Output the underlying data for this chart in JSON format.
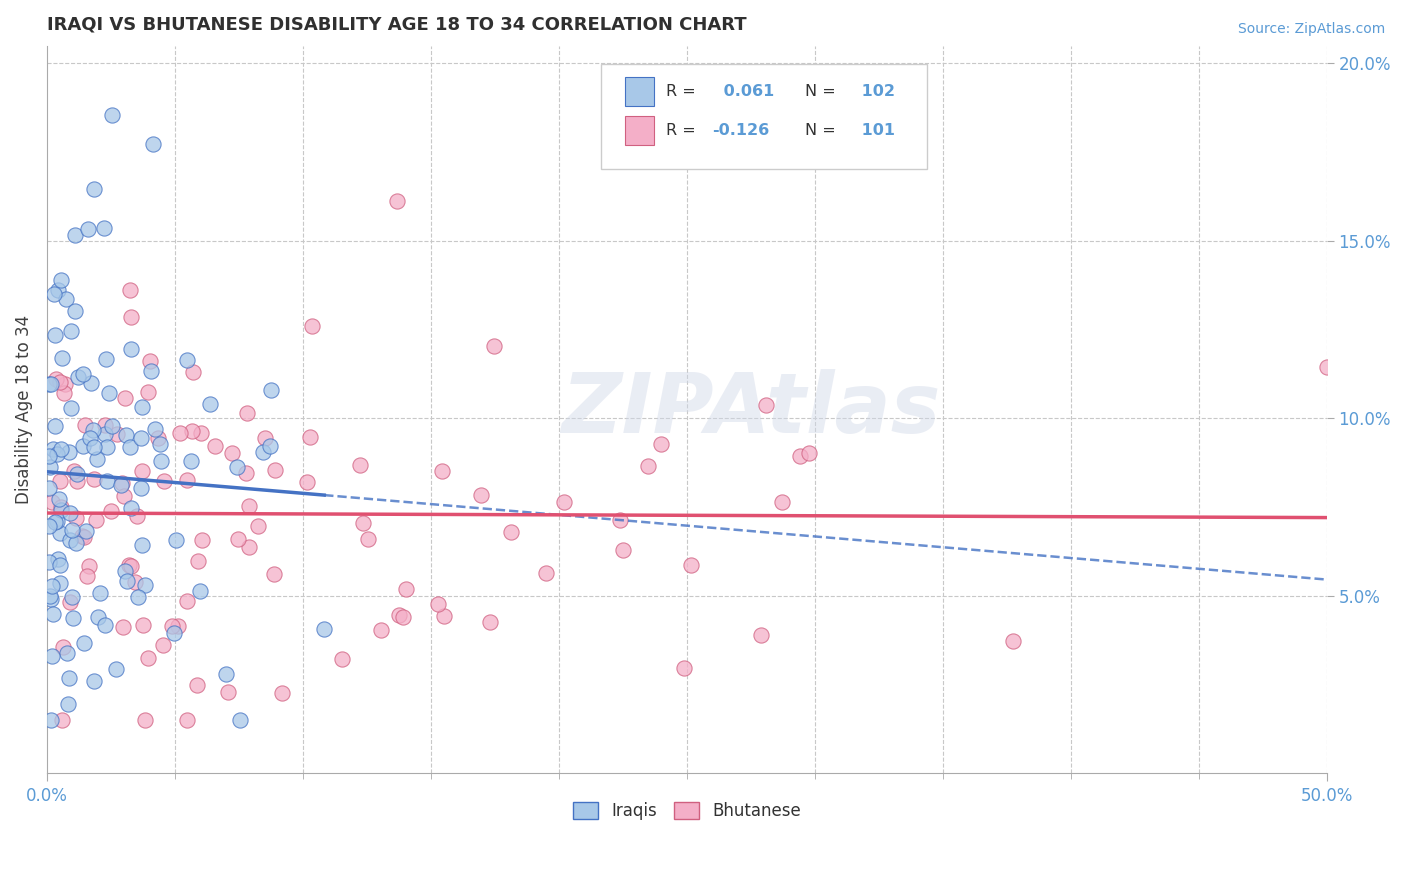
{
  "title": "IRAQI VS BHUTANESE DISABILITY AGE 18 TO 34 CORRELATION CHART",
  "source": "Source: ZipAtlas.com",
  "ylabel": "Disability Age 18 to 34",
  "xlim": [
    0.0,
    0.5
  ],
  "ylim": [
    0.0,
    0.205
  ],
  "legend_label1": "Iraqis",
  "legend_label2": "Bhutanese",
  "R1": 0.061,
  "N1": 102,
  "R2": -0.126,
  "N2": 101,
  "color_iraqi": "#a8c8e8",
  "color_bhutanese": "#f4afc8",
  "color_iraqi_line": "#4472c4",
  "color_bhutanese_line": "#e05070",
  "color_iraqi_edge": "#4472c4",
  "color_bhutanese_edge": "#d06080",
  "watermark": "ZIPAtlas",
  "background_color": "#ffffff",
  "grid_color": "#c8c8c8",
  "title_color": "#303030",
  "tick_color": "#5b9bd5",
  "seed_iraqi": 42,
  "seed_bhut": 77,
  "n_iraqi": 102,
  "n_bhut": 101
}
